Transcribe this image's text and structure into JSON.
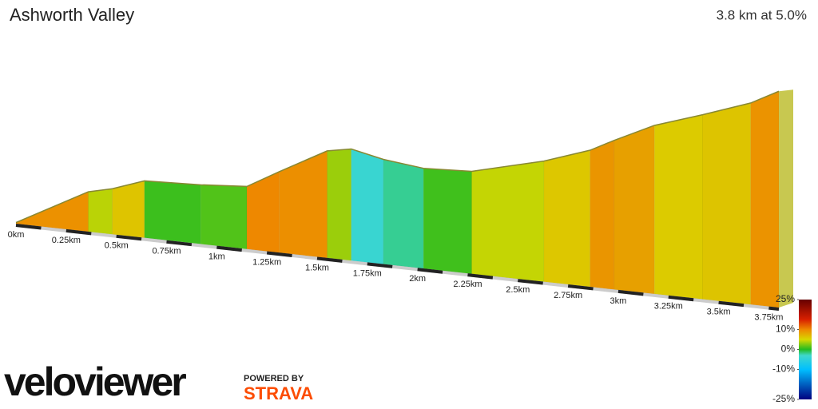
{
  "chart_data": {
    "type": "profile",
    "title": "Ashworth Valley",
    "subtitle": "3.8 km at 5.0%",
    "x": [
      0,
      0.36,
      0.48,
      0.64,
      0.92,
      1.15,
      1.31,
      1.55,
      1.67,
      1.83,
      2.03,
      2.27,
      2.63,
      2.86,
      2.98,
      3.18,
      3.42,
      3.66,
      3.8
    ],
    "values": [
      1,
      35,
      40,
      50,
      52,
      55,
      71,
      94,
      98,
      92,
      88,
      90,
      106,
      120,
      131,
      148,
      162,
      177,
      190
    ],
    "xlim": [
      0,
      3.8
    ],
    "ylim": [
      0,
      200
    ],
    "xticks": [
      {
        "value": 0,
        "label": "0km"
      },
      {
        "value": 0.25,
        "label": "0.25km"
      },
      {
        "value": 0.5,
        "label": "0.5km"
      },
      {
        "value": 0.75,
        "label": "0.75km"
      },
      {
        "value": 1,
        "label": "1km"
      },
      {
        "value": 1.25,
        "label": "1.25km"
      },
      {
        "value": 1.5,
        "label": "1.5km"
      },
      {
        "value": 1.75,
        "label": "1.75km"
      },
      {
        "value": 2,
        "label": "2km"
      },
      {
        "value": 2.25,
        "label": "2.25km"
      },
      {
        "value": 2.5,
        "label": "2.5km"
      },
      {
        "value": 2.75,
        "label": "2.75km"
      },
      {
        "value": 3,
        "label": "3km"
      },
      {
        "value": 3.25,
        "label": "3.25km"
      },
      {
        "value": 3.5,
        "label": "3.5km"
      },
      {
        "value": 3.75,
        "label": "3.75km"
      }
    ],
    "colorbar": {
      "lim": [
        -25,
        25
      ],
      "ticks": [
        {
          "value": 25,
          "label": "25%"
        },
        {
          "value": 10,
          "label": "10%"
        },
        {
          "value": 0,
          "label": "0%"
        },
        {
          "value": -10,
          "label": "-10%"
        },
        {
          "value": -25,
          "label": "-25%"
        }
      ],
      "stops": [
        {
          "value": -25,
          "color": "#000080"
        },
        {
          "value": -10,
          "color": "#00bfff"
        },
        {
          "value": -3,
          "color": "#40d8cc"
        },
        {
          "value": 0,
          "color": "#22bb22"
        },
        {
          "value": 5,
          "color": "#d8d800"
        },
        {
          "value": 10,
          "color": "#ee8800"
        },
        {
          "value": 15,
          "color": "#d82000"
        },
        {
          "value": 25,
          "color": "#660000"
        }
      ]
    }
  },
  "branding": {
    "logo": "veloviewer",
    "powered": "POWERED BY",
    "strava": "STRAVA"
  }
}
